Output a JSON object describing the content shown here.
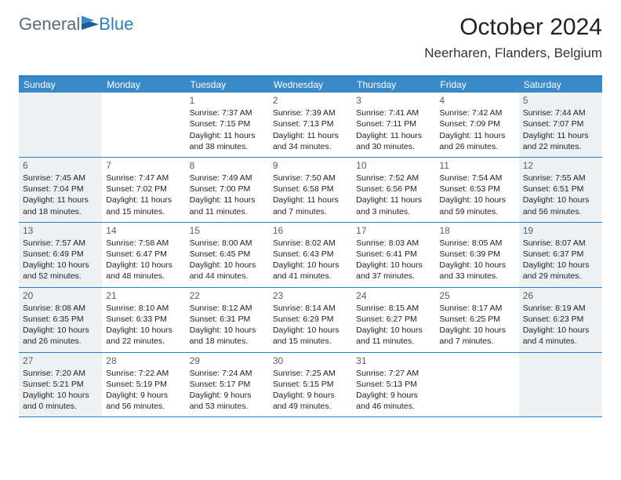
{
  "logo": {
    "general": "General",
    "blue": "Blue"
  },
  "title": "October 2024",
  "location": "Neerharen, Flanders, Belgium",
  "colors": {
    "header_bg": "#3a8ac9",
    "border": "#2a7fbf",
    "shade": "#eef1f3",
    "daynum": "#555d66",
    "text": "#222222",
    "logo_general": "#5a6a78",
    "logo_blue": "#2a7fbf"
  },
  "dow": [
    "Sunday",
    "Monday",
    "Tuesday",
    "Wednesday",
    "Thursday",
    "Friday",
    "Saturday"
  ],
  "weeks": [
    [
      {
        "n": "",
        "sr": "",
        "ss": "",
        "dl1": "",
        "dl2": "",
        "shade": true
      },
      {
        "n": "",
        "sr": "",
        "ss": "",
        "dl1": "",
        "dl2": "",
        "shade": false
      },
      {
        "n": "1",
        "sr": "Sunrise: 7:37 AM",
        "ss": "Sunset: 7:15 PM",
        "dl1": "Daylight: 11 hours",
        "dl2": "and 38 minutes.",
        "shade": false
      },
      {
        "n": "2",
        "sr": "Sunrise: 7:39 AM",
        "ss": "Sunset: 7:13 PM",
        "dl1": "Daylight: 11 hours",
        "dl2": "and 34 minutes.",
        "shade": false
      },
      {
        "n": "3",
        "sr": "Sunrise: 7:41 AM",
        "ss": "Sunset: 7:11 PM",
        "dl1": "Daylight: 11 hours",
        "dl2": "and 30 minutes.",
        "shade": false
      },
      {
        "n": "4",
        "sr": "Sunrise: 7:42 AM",
        "ss": "Sunset: 7:09 PM",
        "dl1": "Daylight: 11 hours",
        "dl2": "and 26 minutes.",
        "shade": false
      },
      {
        "n": "5",
        "sr": "Sunrise: 7:44 AM",
        "ss": "Sunset: 7:07 PM",
        "dl1": "Daylight: 11 hours",
        "dl2": "and 22 minutes.",
        "shade": true
      }
    ],
    [
      {
        "n": "6",
        "sr": "Sunrise: 7:45 AM",
        "ss": "Sunset: 7:04 PM",
        "dl1": "Daylight: 11 hours",
        "dl2": "and 18 minutes.",
        "shade": true
      },
      {
        "n": "7",
        "sr": "Sunrise: 7:47 AM",
        "ss": "Sunset: 7:02 PM",
        "dl1": "Daylight: 11 hours",
        "dl2": "and 15 minutes.",
        "shade": false
      },
      {
        "n": "8",
        "sr": "Sunrise: 7:49 AM",
        "ss": "Sunset: 7:00 PM",
        "dl1": "Daylight: 11 hours",
        "dl2": "and 11 minutes.",
        "shade": false
      },
      {
        "n": "9",
        "sr": "Sunrise: 7:50 AM",
        "ss": "Sunset: 6:58 PM",
        "dl1": "Daylight: 11 hours",
        "dl2": "and 7 minutes.",
        "shade": false
      },
      {
        "n": "10",
        "sr": "Sunrise: 7:52 AM",
        "ss": "Sunset: 6:56 PM",
        "dl1": "Daylight: 11 hours",
        "dl2": "and 3 minutes.",
        "shade": false
      },
      {
        "n": "11",
        "sr": "Sunrise: 7:54 AM",
        "ss": "Sunset: 6:53 PM",
        "dl1": "Daylight: 10 hours",
        "dl2": "and 59 minutes.",
        "shade": false
      },
      {
        "n": "12",
        "sr": "Sunrise: 7:55 AM",
        "ss": "Sunset: 6:51 PM",
        "dl1": "Daylight: 10 hours",
        "dl2": "and 56 minutes.",
        "shade": true
      }
    ],
    [
      {
        "n": "13",
        "sr": "Sunrise: 7:57 AM",
        "ss": "Sunset: 6:49 PM",
        "dl1": "Daylight: 10 hours",
        "dl2": "and 52 minutes.",
        "shade": true
      },
      {
        "n": "14",
        "sr": "Sunrise: 7:58 AM",
        "ss": "Sunset: 6:47 PM",
        "dl1": "Daylight: 10 hours",
        "dl2": "and 48 minutes.",
        "shade": false
      },
      {
        "n": "15",
        "sr": "Sunrise: 8:00 AM",
        "ss": "Sunset: 6:45 PM",
        "dl1": "Daylight: 10 hours",
        "dl2": "and 44 minutes.",
        "shade": false
      },
      {
        "n": "16",
        "sr": "Sunrise: 8:02 AM",
        "ss": "Sunset: 6:43 PM",
        "dl1": "Daylight: 10 hours",
        "dl2": "and 41 minutes.",
        "shade": false
      },
      {
        "n": "17",
        "sr": "Sunrise: 8:03 AM",
        "ss": "Sunset: 6:41 PM",
        "dl1": "Daylight: 10 hours",
        "dl2": "and 37 minutes.",
        "shade": false
      },
      {
        "n": "18",
        "sr": "Sunrise: 8:05 AM",
        "ss": "Sunset: 6:39 PM",
        "dl1": "Daylight: 10 hours",
        "dl2": "and 33 minutes.",
        "shade": false
      },
      {
        "n": "19",
        "sr": "Sunrise: 8:07 AM",
        "ss": "Sunset: 6:37 PM",
        "dl1": "Daylight: 10 hours",
        "dl2": "and 29 minutes.",
        "shade": true
      }
    ],
    [
      {
        "n": "20",
        "sr": "Sunrise: 8:08 AM",
        "ss": "Sunset: 6:35 PM",
        "dl1": "Daylight: 10 hours",
        "dl2": "and 26 minutes.",
        "shade": true
      },
      {
        "n": "21",
        "sr": "Sunrise: 8:10 AM",
        "ss": "Sunset: 6:33 PM",
        "dl1": "Daylight: 10 hours",
        "dl2": "and 22 minutes.",
        "shade": false
      },
      {
        "n": "22",
        "sr": "Sunrise: 8:12 AM",
        "ss": "Sunset: 6:31 PM",
        "dl1": "Daylight: 10 hours",
        "dl2": "and 18 minutes.",
        "shade": false
      },
      {
        "n": "23",
        "sr": "Sunrise: 8:14 AM",
        "ss": "Sunset: 6:29 PM",
        "dl1": "Daylight: 10 hours",
        "dl2": "and 15 minutes.",
        "shade": false
      },
      {
        "n": "24",
        "sr": "Sunrise: 8:15 AM",
        "ss": "Sunset: 6:27 PM",
        "dl1": "Daylight: 10 hours",
        "dl2": "and 11 minutes.",
        "shade": false
      },
      {
        "n": "25",
        "sr": "Sunrise: 8:17 AM",
        "ss": "Sunset: 6:25 PM",
        "dl1": "Daylight: 10 hours",
        "dl2": "and 7 minutes.",
        "shade": false
      },
      {
        "n": "26",
        "sr": "Sunrise: 8:19 AM",
        "ss": "Sunset: 6:23 PM",
        "dl1": "Daylight: 10 hours",
        "dl2": "and 4 minutes.",
        "shade": true
      }
    ],
    [
      {
        "n": "27",
        "sr": "Sunrise: 7:20 AM",
        "ss": "Sunset: 5:21 PM",
        "dl1": "Daylight: 10 hours",
        "dl2": "and 0 minutes.",
        "shade": true
      },
      {
        "n": "28",
        "sr": "Sunrise: 7:22 AM",
        "ss": "Sunset: 5:19 PM",
        "dl1": "Daylight: 9 hours",
        "dl2": "and 56 minutes.",
        "shade": false
      },
      {
        "n": "29",
        "sr": "Sunrise: 7:24 AM",
        "ss": "Sunset: 5:17 PM",
        "dl1": "Daylight: 9 hours",
        "dl2": "and 53 minutes.",
        "shade": false
      },
      {
        "n": "30",
        "sr": "Sunrise: 7:25 AM",
        "ss": "Sunset: 5:15 PM",
        "dl1": "Daylight: 9 hours",
        "dl2": "and 49 minutes.",
        "shade": false
      },
      {
        "n": "31",
        "sr": "Sunrise: 7:27 AM",
        "ss": "Sunset: 5:13 PM",
        "dl1": "Daylight: 9 hours",
        "dl2": "and 46 minutes.",
        "shade": false
      },
      {
        "n": "",
        "sr": "",
        "ss": "",
        "dl1": "",
        "dl2": "",
        "shade": false
      },
      {
        "n": "",
        "sr": "",
        "ss": "",
        "dl1": "",
        "dl2": "",
        "shade": true
      }
    ]
  ]
}
